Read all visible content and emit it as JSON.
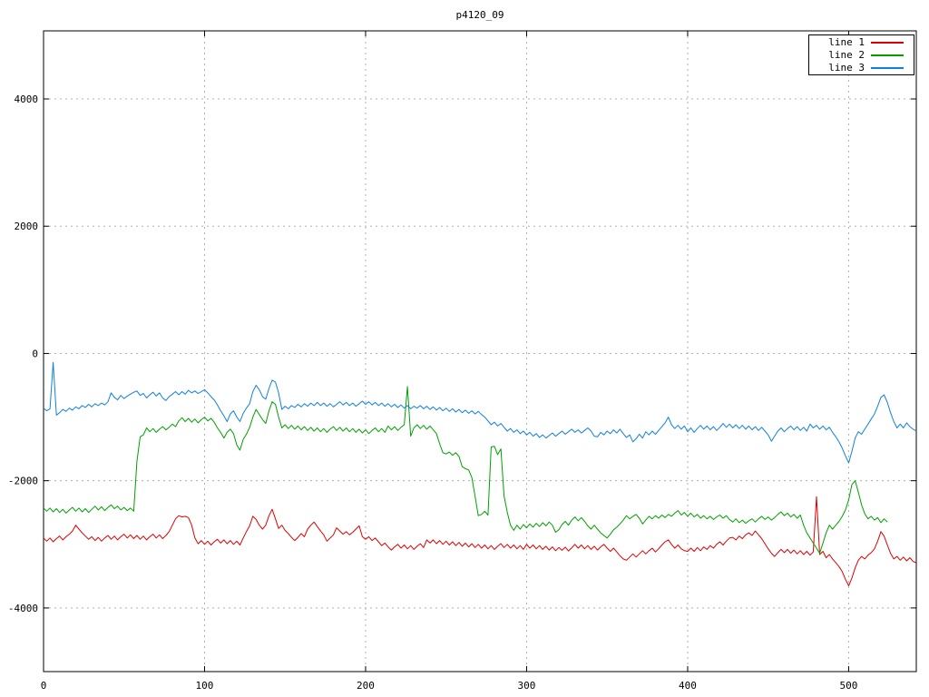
{
  "page": {
    "background": "#ffffff"
  },
  "chart_data": {
    "type": "line",
    "title": "p4120_09",
    "xlabel": "",
    "ylabel": "",
    "xlim": [
      0,
      542
    ],
    "ylim": [
      -5000,
      5070
    ],
    "xticks": [
      0,
      100,
      200,
      300,
      400,
      500
    ],
    "yticks": [
      -4000,
      -2000,
      0,
      2000,
      4000
    ],
    "grid": true,
    "grid_color": "#b0b0b0",
    "border_color": "#000000",
    "tick_label_color": "#000000",
    "legend_position": "top-right",
    "x_start": 0,
    "x_step": 2,
    "series": [
      {
        "name": "line 1",
        "color": "#e00000",
        "values": [
          -2900,
          -2950,
          -2900,
          -2960,
          -2910,
          -2870,
          -2930,
          -2880,
          -2840,
          -2790,
          -2700,
          -2760,
          -2820,
          -2870,
          -2920,
          -2880,
          -2940,
          -2890,
          -2950,
          -2900,
          -2860,
          -2920,
          -2870,
          -2930,
          -2880,
          -2840,
          -2900,
          -2850,
          -2910,
          -2860,
          -2920,
          -2870,
          -2930,
          -2880,
          -2840,
          -2900,
          -2850,
          -2910,
          -2860,
          -2800,
          -2700,
          -2600,
          -2550,
          -2570,
          -2560,
          -2580,
          -2700,
          -2900,
          -2990,
          -2940,
          -3000,
          -2950,
          -3010,
          -2960,
          -2920,
          -2980,
          -2930,
          -2990,
          -2940,
          -3000,
          -2950,
          -3010,
          -2900,
          -2800,
          -2710,
          -2560,
          -2610,
          -2700,
          -2760,
          -2700,
          -2550,
          -2450,
          -2600,
          -2750,
          -2700,
          -2780,
          -2830,
          -2890,
          -2940,
          -2890,
          -2830,
          -2880,
          -2760,
          -2700,
          -2650,
          -2720,
          -2790,
          -2850,
          -2950,
          -2900,
          -2850,
          -2740,
          -2790,
          -2840,
          -2800,
          -2850,
          -2810,
          -2760,
          -2710,
          -2880,
          -2920,
          -2880,
          -2940,
          -2900,
          -2960,
          -3020,
          -2980,
          -3040,
          -3090,
          -3040,
          -3000,
          -3060,
          -3010,
          -3070,
          -3020,
          -3080,
          -3030,
          -2990,
          -3050,
          -2930,
          -2980,
          -2930,
          -2990,
          -2940,
          -3000,
          -2950,
          -3010,
          -2960,
          -3020,
          -2970,
          -3030,
          -2980,
          -3040,
          -2990,
          -3050,
          -3000,
          -3060,
          -3010,
          -3070,
          -3020,
          -3080,
          -3030,
          -2990,
          -3050,
          -3000,
          -3060,
          -3010,
          -3070,
          -3020,
          -3080,
          -3000,
          -3060,
          -3010,
          -3070,
          -3020,
          -3080,
          -3030,
          -3090,
          -3040,
          -3100,
          -3050,
          -3095,
          -3045,
          -3105,
          -3055,
          -3000,
          -3060,
          -3010,
          -3070,
          -3020,
          -3080,
          -3030,
          -3090,
          -3040,
          -3000,
          -3060,
          -3110,
          -3060,
          -3120,
          -3180,
          -3230,
          -3250,
          -3200,
          -3150,
          -3200,
          -3150,
          -3100,
          -3150,
          -3100,
          -3060,
          -3120,
          -3070,
          -3010,
          -2960,
          -2930,
          -3000,
          -3060,
          -3010,
          -3070,
          -3100,
          -3110,
          -3060,
          -3110,
          -3050,
          -3100,
          -3040,
          -3080,
          -3020,
          -3060,
          -3000,
          -2960,
          -3010,
          -2950,
          -2900,
          -2890,
          -2930,
          -2870,
          -2910,
          -2850,
          -2820,
          -2860,
          -2790,
          -2850,
          -2910,
          -2990,
          -3070,
          -3140,
          -3190,
          -3130,
          -3080,
          -3130,
          -3080,
          -3140,
          -3090,
          -3150,
          -3100,
          -3160,
          -3110,
          -3170,
          -3120,
          -2250,
          -3160,
          -3110,
          -3210,
          -3160,
          -3230,
          -3290,
          -3350,
          -3430,
          -3550,
          -3650,
          -3530,
          -3370,
          -3250,
          -3190,
          -3230,
          -3170,
          -3130,
          -3070,
          -2950,
          -2800,
          -2870,
          -3010,
          -3140,
          -3230,
          -3190,
          -3250,
          -3200,
          -3260,
          -3210,
          -3270,
          -3290
        ]
      },
      {
        "name": "line 2",
        "color": "#00a000",
        "values": [
          -2430,
          -2480,
          -2430,
          -2490,
          -2440,
          -2500,
          -2450,
          -2510,
          -2460,
          -2420,
          -2480,
          -2430,
          -2490,
          -2440,
          -2500,
          -2450,
          -2400,
          -2460,
          -2410,
          -2470,
          -2420,
          -2380,
          -2440,
          -2400,
          -2460,
          -2420,
          -2470,
          -2430,
          -2480,
          -1700,
          -1310,
          -1280,
          -1170,
          -1230,
          -1180,
          -1240,
          -1190,
          -1150,
          -1200,
          -1160,
          -1110,
          -1150,
          -1060,
          -1010,
          -1070,
          -1020,
          -1080,
          -1030,
          -1090,
          -1040,
          -1000,
          -1060,
          -1020,
          -1080,
          -1170,
          -1240,
          -1330,
          -1240,
          -1190,
          -1260,
          -1440,
          -1520,
          -1350,
          -1270,
          -1160,
          -1000,
          -880,
          -960,
          -1040,
          -1100,
          -900,
          -760,
          -800,
          -1000,
          -1170,
          -1120,
          -1180,
          -1130,
          -1190,
          -1140,
          -1200,
          -1150,
          -1210,
          -1160,
          -1220,
          -1170,
          -1230,
          -1180,
          -1240,
          -1190,
          -1150,
          -1210,
          -1160,
          -1220,
          -1170,
          -1230,
          -1180,
          -1240,
          -1190,
          -1250,
          -1200,
          -1260,
          -1210,
          -1170,
          -1230,
          -1180,
          -1240,
          -1140,
          -1200,
          -1150,
          -1210,
          -1160,
          -1120,
          -520,
          -1300,
          -1170,
          -1120,
          -1180,
          -1130,
          -1190,
          -1140,
          -1200,
          -1260,
          -1420,
          -1560,
          -1580,
          -1550,
          -1600,
          -1560,
          -1620,
          -1780,
          -1810,
          -1830,
          -1950,
          -2250,
          -2550,
          -2530,
          -2480,
          -2540,
          -1470,
          -1460,
          -1590,
          -1500,
          -2240,
          -2500,
          -2700,
          -2780,
          -2700,
          -2760,
          -2690,
          -2740,
          -2680,
          -2730,
          -2670,
          -2720,
          -2660,
          -2710,
          -2650,
          -2700,
          -2810,
          -2770,
          -2690,
          -2640,
          -2700,
          -2620,
          -2570,
          -2630,
          -2580,
          -2640,
          -2710,
          -2760,
          -2700,
          -2760,
          -2820,
          -2860,
          -2900,
          -2840,
          -2770,
          -2730,
          -2680,
          -2620,
          -2550,
          -2600,
          -2560,
          -2530,
          -2590,
          -2680,
          -2620,
          -2560,
          -2600,
          -2550,
          -2590,
          -2540,
          -2580,
          -2530,
          -2560,
          -2510,
          -2470,
          -2540,
          -2500,
          -2560,
          -2510,
          -2570,
          -2530,
          -2590,
          -2550,
          -2600,
          -2560,
          -2610,
          -2570,
          -2540,
          -2590,
          -2550,
          -2610,
          -2650,
          -2600,
          -2660,
          -2620,
          -2670,
          -2630,
          -2600,
          -2650,
          -2600,
          -2560,
          -2610,
          -2570,
          -2620,
          -2580,
          -2530,
          -2490,
          -2550,
          -2510,
          -2570,
          -2530,
          -2590,
          -2540,
          -2700,
          -2820,
          -2900,
          -2980,
          -3060,
          -3140,
          -2980,
          -2820,
          -2700,
          -2760,
          -2700,
          -2640,
          -2560,
          -2460,
          -2300,
          -2060,
          -2000,
          -2180,
          -2380,
          -2520,
          -2600,
          -2560,
          -2620,
          -2580,
          -2660,
          -2600,
          -2650
        ]
      },
      {
        "name": "line 3",
        "color": "#1080e0",
        "values": [
          -860,
          -900,
          -870,
          -140,
          -970,
          -930,
          -880,
          -910,
          -860,
          -890,
          -840,
          -870,
          -820,
          -850,
          -800,
          -840,
          -790,
          -820,
          -780,
          -810,
          -760,
          -620,
          -690,
          -730,
          -660,
          -710,
          -670,
          -640,
          -610,
          -590,
          -660,
          -630,
          -700,
          -650,
          -610,
          -670,
          -620,
          -700,
          -740,
          -680,
          -640,
          -600,
          -650,
          -600,
          -640,
          -580,
          -620,
          -590,
          -630,
          -600,
          -570,
          -620,
          -680,
          -730,
          -810,
          -900,
          -980,
          -1070,
          -950,
          -900,
          -1000,
          -1070,
          -940,
          -860,
          -790,
          -600,
          -500,
          -570,
          -680,
          -720,
          -550,
          -420,
          -450,
          -620,
          -880,
          -830,
          -870,
          -820,
          -850,
          -800,
          -840,
          -790,
          -830,
          -780,
          -820,
          -770,
          -820,
          -780,
          -830,
          -790,
          -840,
          -800,
          -760,
          -810,
          -770,
          -820,
          -780,
          -830,
          -790,
          -750,
          -800,
          -760,
          -810,
          -770,
          -820,
          -780,
          -830,
          -790,
          -840,
          -800,
          -850,
          -810,
          -860,
          -820,
          -870,
          -830,
          -860,
          -820,
          -870,
          -830,
          -880,
          -840,
          -890,
          -850,
          -900,
          -860,
          -910,
          -870,
          -920,
          -880,
          -930,
          -890,
          -940,
          -900,
          -950,
          -910,
          -960,
          -1000,
          -1060,
          -1120,
          -1080,
          -1140,
          -1100,
          -1160,
          -1220,
          -1180,
          -1240,
          -1200,
          -1260,
          -1220,
          -1280,
          -1240,
          -1300,
          -1260,
          -1320,
          -1280,
          -1330,
          -1290,
          -1250,
          -1300,
          -1260,
          -1220,
          -1270,
          -1230,
          -1190,
          -1240,
          -1200,
          -1250,
          -1210,
          -1170,
          -1220,
          -1300,
          -1310,
          -1240,
          -1280,
          -1220,
          -1260,
          -1200,
          -1250,
          -1190,
          -1260,
          -1320,
          -1280,
          -1390,
          -1340,
          -1270,
          -1330,
          -1230,
          -1280,
          -1220,
          -1270,
          -1210,
          -1150,
          -1090,
          -1000,
          -1120,
          -1180,
          -1130,
          -1190,
          -1140,
          -1230,
          -1170,
          -1240,
          -1180,
          -1130,
          -1190,
          -1140,
          -1200,
          -1150,
          -1210,
          -1160,
          -1100,
          -1160,
          -1110,
          -1170,
          -1120,
          -1180,
          -1130,
          -1190,
          -1140,
          -1200,
          -1150,
          -1210,
          -1160,
          -1220,
          -1280,
          -1380,
          -1300,
          -1220,
          -1170,
          -1230,
          -1180,
          -1140,
          -1200,
          -1150,
          -1210,
          -1160,
          -1220,
          -1110,
          -1170,
          -1130,
          -1190,
          -1140,
          -1200,
          -1160,
          -1240,
          -1310,
          -1390,
          -1490,
          -1610,
          -1720,
          -1540,
          -1330,
          -1230,
          -1270,
          -1190,
          -1110,
          -1030,
          -950,
          -830,
          -690,
          -650,
          -770,
          -930,
          -1070,
          -1170,
          -1110,
          -1170,
          -1090,
          -1150,
          -1190,
          -1220
        ]
      }
    ]
  }
}
